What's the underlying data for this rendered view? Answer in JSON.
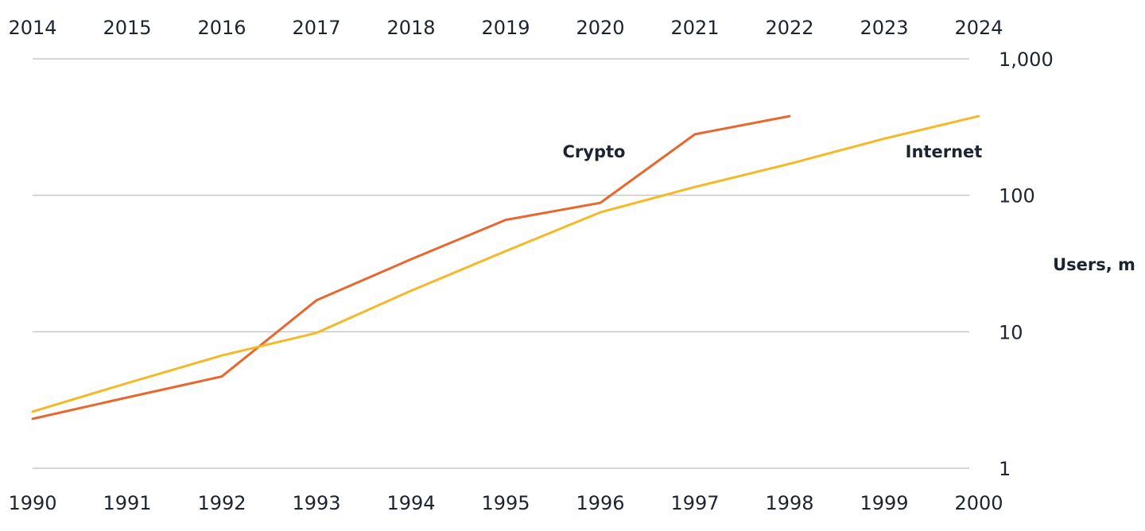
{
  "chart_data": {
    "type": "line",
    "ylabel": "Users, m",
    "y_scale": "log",
    "ylim": [
      1,
      1000
    ],
    "y_ticks": [
      {
        "value": 1,
        "label": "1"
      },
      {
        "value": 10,
        "label": "10"
      },
      {
        "value": 100,
        "label": "100"
      },
      {
        "value": 1000,
        "label": "1,000"
      }
    ],
    "grid": true,
    "top_axis_ticks": [
      "2014",
      "2015",
      "2016",
      "2017",
      "2018",
      "2019",
      "2020",
      "2021",
      "2022",
      "2023",
      "2024"
    ],
    "bottom_axis_ticks": [
      "1990",
      "1991",
      "1992",
      "1993",
      "1994",
      "1995",
      "1996",
      "1997",
      "1998",
      "1999",
      "2000"
    ],
    "series": [
      {
        "name": "Crypto",
        "axis": "top",
        "color": "#e8672e",
        "x": [
          "2014",
          "2015",
          "2016",
          "2017",
          "2018",
          "2019",
          "2020",
          "2021",
          "2022"
        ],
        "values": [
          2.3,
          3.3,
          4.7,
          17,
          34,
          66,
          88,
          280,
          380
        ]
      },
      {
        "name": "Internet",
        "axis": "bottom",
        "color": "#f5b826",
        "x": [
          "1990",
          "1991",
          "1992",
          "1993",
          "1994",
          "1995",
          "1996",
          "1997",
          "1998",
          "1999",
          "2000"
        ],
        "values": [
          2.6,
          4.2,
          6.7,
          9.8,
          20,
          39,
          75,
          115,
          170,
          260,
          380
        ]
      }
    ]
  }
}
